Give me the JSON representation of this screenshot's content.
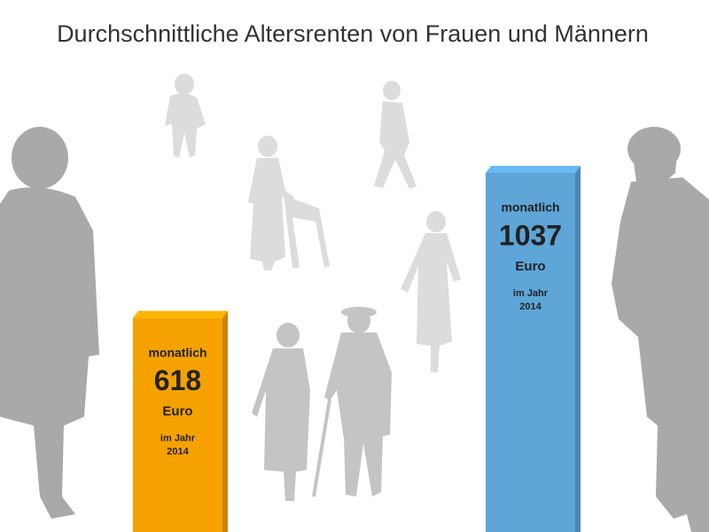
{
  "chart_data": {
    "type": "bar",
    "title": "Durchschnittliche Altersrenten von Frauen und Männern",
    "categories": [
      null,
      null
    ],
    "values": [
      618,
      1037
    ],
    "colors": [
      "#f5a200",
      "#5ea5d8"
    ],
    "prefix": "monatlich",
    "unit": "Euro",
    "note": [
      "im Jahr",
      "2014"
    ]
  }
}
